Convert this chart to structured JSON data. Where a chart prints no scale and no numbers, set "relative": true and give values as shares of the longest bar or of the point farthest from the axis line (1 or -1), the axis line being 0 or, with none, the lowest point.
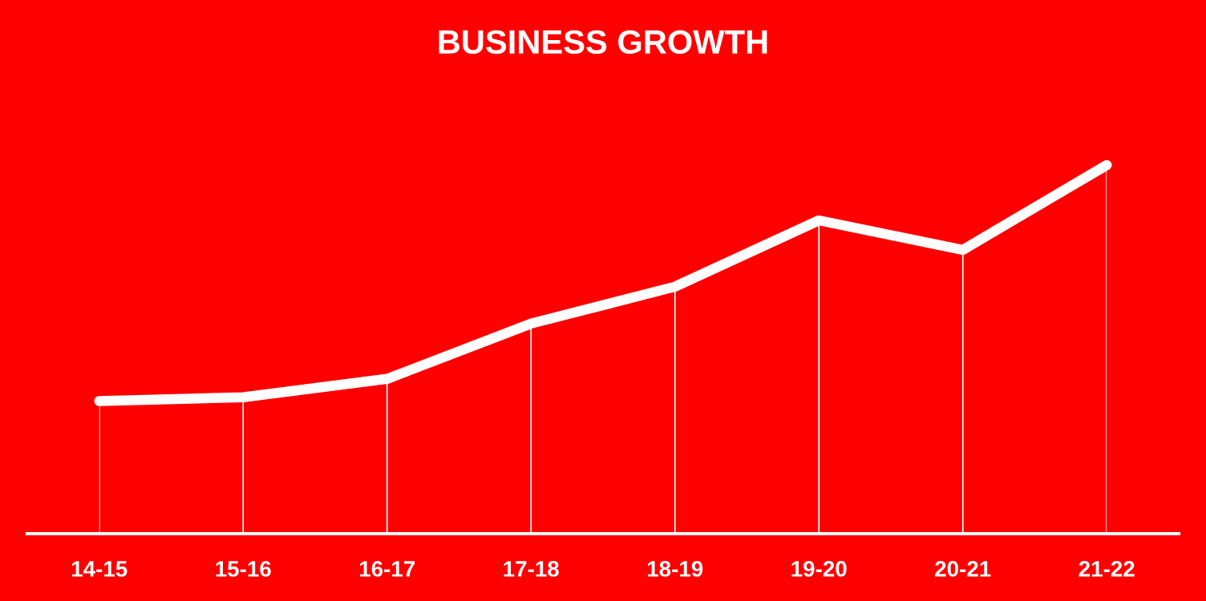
{
  "chart_data": {
    "type": "line",
    "title": "BUSINESS GROWTH",
    "relative": true,
    "categories": [
      "14-15",
      "15-16",
      "16-17",
      "17-18",
      "18-19",
      "19-20",
      "20-21",
      "21-22"
    ],
    "series": [
      {
        "color": "#ffffff",
        "values": [
          0.36,
          0.37,
          0.42,
          0.57,
          0.67,
          0.85,
          0.77,
          1.0
        ]
      }
    ],
    "grid": "x",
    "marker": "none",
    "line_style": "solid"
  }
}
